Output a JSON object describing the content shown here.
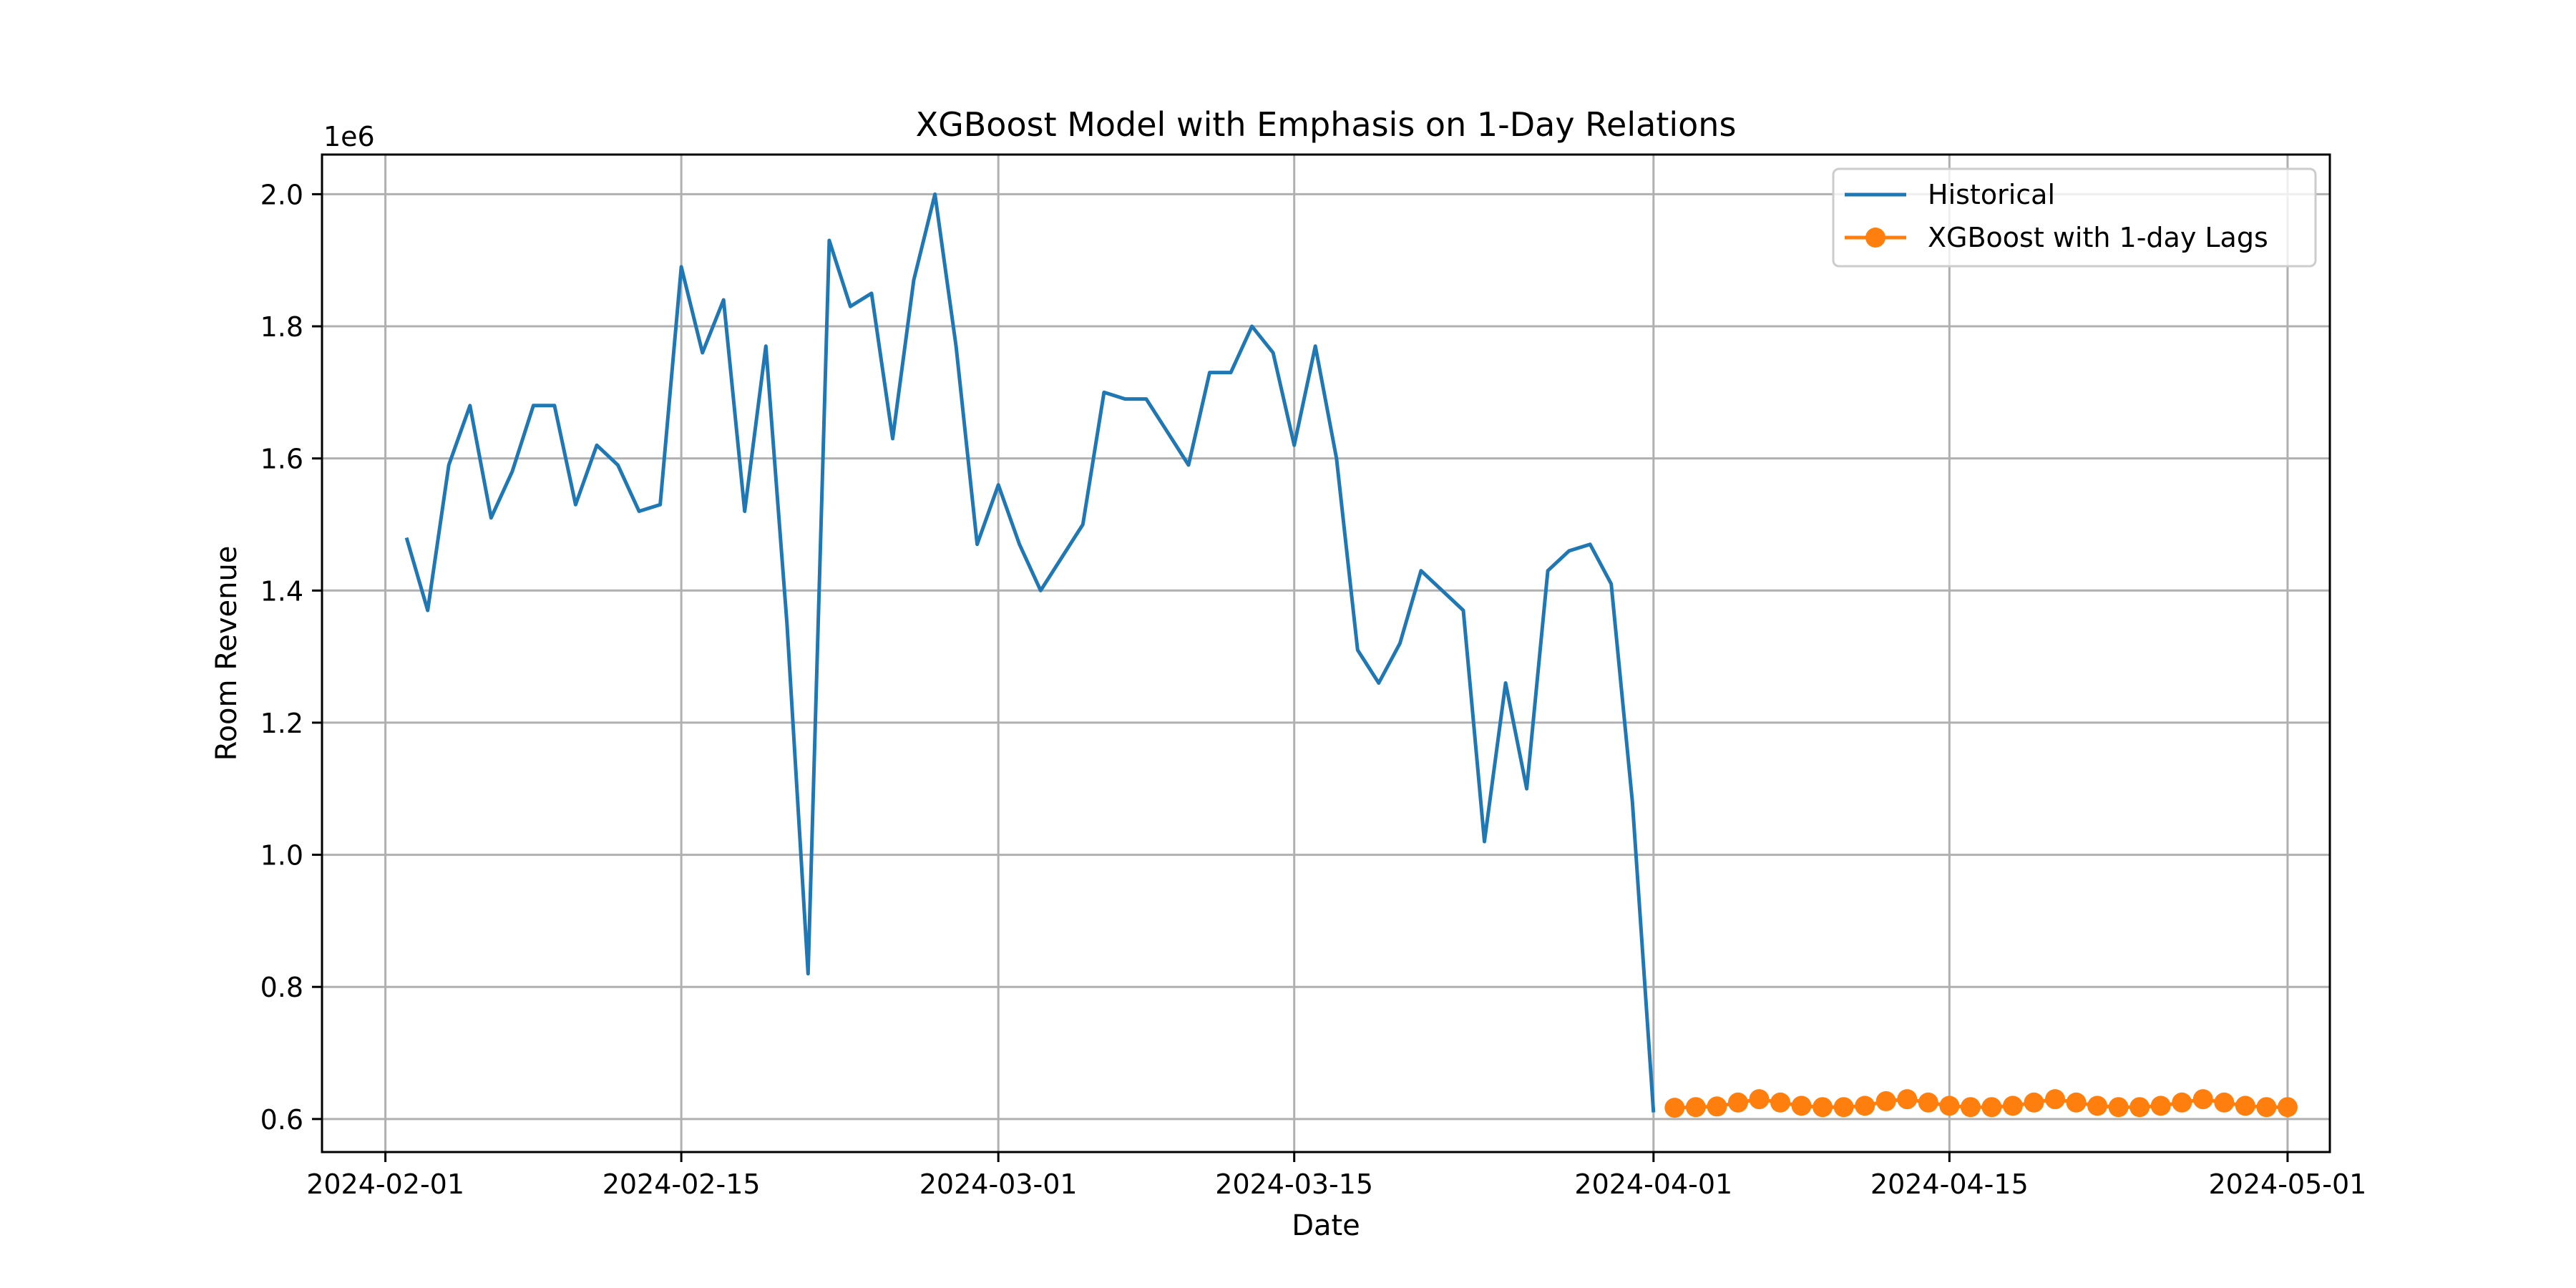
{
  "chart_data": {
    "type": "line",
    "title": "XGBoost Model with Emphasis on 1-Day Relations",
    "xlabel": "Date",
    "ylabel": "Room Revenue",
    "y_offset_label": "1e6",
    "x_range": [
      "2024-01-29",
      "2024-05-03"
    ],
    "y_range": [
      0.55,
      2.06
    ],
    "y_scale_factor": 1000000,
    "grid": true,
    "legend_position": "top-right",
    "x_ticks": [
      "2024-02-01",
      "2024-02-15",
      "2024-03-01",
      "2024-03-15",
      "2024-04-01",
      "2024-04-15",
      "2024-05-01"
    ],
    "y_ticks": [
      0.6,
      0.8,
      1.0,
      1.2,
      1.4,
      1.6,
      1.8,
      2.0
    ],
    "y_tick_labels": [
      "0.6",
      "0.8",
      "1.0",
      "1.2",
      "1.4",
      "1.6",
      "1.8",
      "2.0"
    ],
    "series": [
      {
        "name": "Historical",
        "color": "#1f77b4",
        "marker": "none",
        "x": [
          "2024-02-02",
          "2024-02-03",
          "2024-02-04",
          "2024-02-05",
          "2024-02-06",
          "2024-02-07",
          "2024-02-08",
          "2024-02-09",
          "2024-02-10",
          "2024-02-11",
          "2024-02-12",
          "2024-02-13",
          "2024-02-14",
          "2024-02-15",
          "2024-02-16",
          "2024-02-17",
          "2024-02-18",
          "2024-02-19",
          "2024-02-20",
          "2024-02-21",
          "2024-02-22",
          "2024-02-23",
          "2024-02-24",
          "2024-02-25",
          "2024-02-26",
          "2024-02-27",
          "2024-02-28",
          "2024-02-29",
          "2024-03-01",
          "2024-03-02",
          "2024-03-03",
          "2024-03-04",
          "2024-03-05",
          "2024-03-06",
          "2024-03-07",
          "2024-03-08",
          "2024-03-09",
          "2024-03-10",
          "2024-03-11",
          "2024-03-12",
          "2024-03-13",
          "2024-03-14",
          "2024-03-15",
          "2024-03-16",
          "2024-03-17",
          "2024-03-18",
          "2024-03-19",
          "2024-03-20",
          "2024-03-21",
          "2024-03-22",
          "2024-03-23",
          "2024-03-24",
          "2024-03-25",
          "2024-03-26",
          "2024-03-27",
          "2024-03-28",
          "2024-03-29",
          "2024-03-30",
          "2024-03-31",
          "2024-04-01"
        ],
        "values": [
          1.48,
          1.37,
          1.59,
          1.68,
          1.51,
          1.58,
          1.68,
          1.68,
          1.53,
          1.62,
          1.59,
          1.52,
          1.53,
          1.89,
          1.76,
          1.84,
          1.52,
          1.77,
          1.35,
          0.82,
          1.93,
          1.83,
          1.85,
          1.63,
          1.87,
          2.0,
          1.77,
          1.47,
          1.56,
          1.47,
          1.4,
          1.45,
          1.5,
          1.7,
          1.69,
          1.69,
          1.64,
          1.59,
          1.73,
          1.73,
          1.8,
          1.76,
          1.62,
          1.77,
          1.6,
          1.31,
          1.26,
          1.32,
          1.43,
          1.4,
          1.37,
          1.02,
          1.26,
          1.1,
          1.43,
          1.46,
          1.47,
          1.41,
          1.08,
          0.61
        ]
      },
      {
        "name": "XGBoost with 1-day Lags",
        "color": "#ff7f0e",
        "marker": "circle",
        "x": [
          "2024-04-02",
          "2024-04-03",
          "2024-04-04",
          "2024-04-05",
          "2024-04-06",
          "2024-04-07",
          "2024-04-08",
          "2024-04-09",
          "2024-04-10",
          "2024-04-11",
          "2024-04-12",
          "2024-04-13",
          "2024-04-14",
          "2024-04-15",
          "2024-04-16",
          "2024-04-17",
          "2024-04-18",
          "2024-04-19",
          "2024-04-20",
          "2024-04-21",
          "2024-04-22",
          "2024-04-23",
          "2024-04-24",
          "2024-04-25",
          "2024-04-26",
          "2024-04-27",
          "2024-04-28",
          "2024-04-29",
          "2024-04-30",
          "2024-05-01"
        ],
        "values": [
          0.617,
          0.618,
          0.619,
          0.625,
          0.63,
          0.625,
          0.62,
          0.618,
          0.618,
          0.62,
          0.627,
          0.63,
          0.625,
          0.62,
          0.618,
          0.618,
          0.62,
          0.625,
          0.63,
          0.625,
          0.62,
          0.618,
          0.618,
          0.62,
          0.625,
          0.63,
          0.625,
          0.62,
          0.618,
          0.618
        ]
      }
    ]
  }
}
